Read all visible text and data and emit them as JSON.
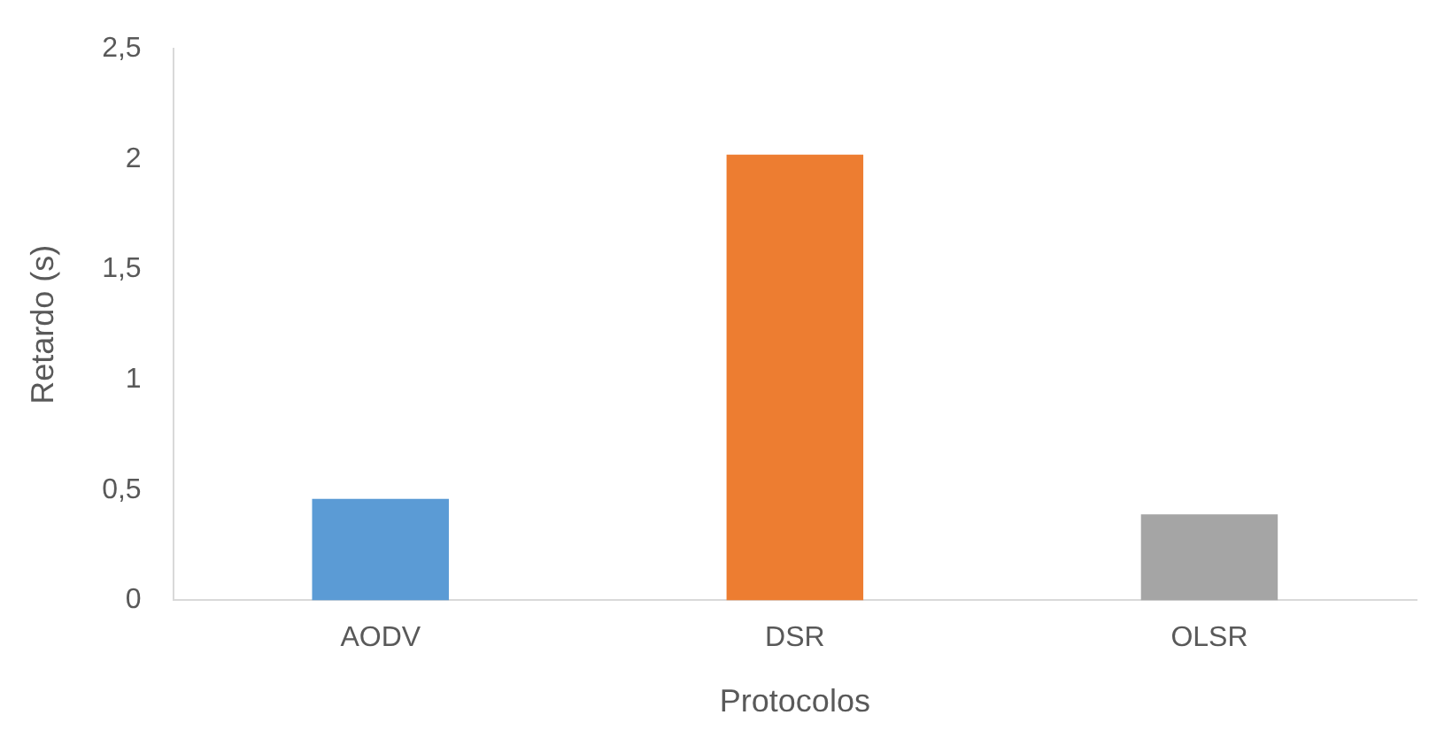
{
  "chart_data": {
    "type": "bar",
    "xlabel": "Protocolos",
    "ylabel": "Retardo (s)",
    "categories": [
      "AODV",
      "DSR",
      "OLSR"
    ],
    "values": [
      0.46,
      2.02,
      0.39
    ],
    "colors": [
      "#5b9bd5",
      "#ed7d31",
      "#a5a5a5"
    ],
    "ylim": [
      0,
      2.5
    ],
    "yticks": [
      {
        "value": 0,
        "label": "0"
      },
      {
        "value": 0.5,
        "label": "0,5"
      },
      {
        "value": 1,
        "label": "1"
      },
      {
        "value": 1.5,
        "label": "1,5"
      },
      {
        "value": 2,
        "label": "2"
      },
      {
        "value": 2.5,
        "label": "2,5"
      }
    ],
    "grid": false,
    "legend": false
  }
}
